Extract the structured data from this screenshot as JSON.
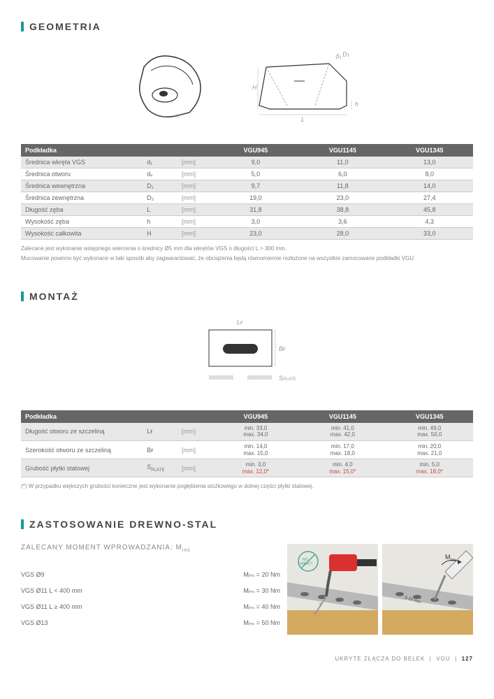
{
  "sections": {
    "geometria": "GEOMETRIA",
    "montaz": "MONTAŻ",
    "zastosowanie": "ZASTOSOWANIE DREWNO-STAL"
  },
  "subtitle_zalecany": "ZALECANY MOMENT WPROWADZANIA: M",
  "geom_table": {
    "header": [
      "Podkładka",
      "",
      "",
      "VGU945",
      "VGU1145",
      "VGU1345"
    ],
    "rows": [
      {
        "label": "Średnica wkręta VGS",
        "sym": "d₁",
        "unit": "[mm]",
        "v": [
          "9,0",
          "11,0",
          "13,0"
        ],
        "shade": true
      },
      {
        "label": "Średnica otworu",
        "sym": "dᵥ",
        "unit": "[mm]",
        "v": [
          "5,0",
          "6,0",
          "8,0"
        ],
        "shade": false
      },
      {
        "label": "Średnica wewnętrzna",
        "sym": "D₁",
        "unit": "[mm]",
        "v": [
          "9,7",
          "11,8",
          "14,0"
        ],
        "shade": true
      },
      {
        "label": "Średnica zewnętrzna",
        "sym": "D₂",
        "unit": "[mm]",
        "v": [
          "19,0",
          "23,0",
          "27,4"
        ],
        "shade": false
      },
      {
        "label": "Długość zęba",
        "sym": "L",
        "unit": "[mm]",
        "v": [
          "31,8",
          "38,8",
          "45,8"
        ],
        "shade": true
      },
      {
        "label": "Wysokość zęba",
        "sym": "h",
        "unit": "[mm]",
        "v": [
          "3,0",
          "3,6",
          "4,3"
        ],
        "shade": false
      },
      {
        "label": "Wysokość całkowita",
        "sym": "H",
        "unit": "[mm]",
        "v": [
          "23,0",
          "28,0",
          "33,0"
        ],
        "shade": true
      }
    ],
    "note1": "Zalecane jest wykonanie wstępnego wiercenia o średnicy Ø5 mm dla wkrętów VGS o długości L > 300 mm.",
    "note2": "Mocowanie powinno być wykonane w taki sposób aby zagwarantować, że obciążenia będą równomiernie rozłożone na wszystkie zamo­cowane podkładki VGU."
  },
  "montaz_table": {
    "header": [
      "Podkładka",
      "",
      "",
      "VGU945",
      "VGU1145",
      "VGU1345"
    ],
    "rows": [
      {
        "label": "Długość otworu ze szczeliną",
        "sym": "Lғ",
        "unit": "[mm]",
        "v": [
          [
            "min. 33,0",
            "max. 34,0"
          ],
          [
            "min. 41,0",
            "max. 42,0"
          ],
          [
            "min. 49,0",
            "max. 50,0"
          ]
        ],
        "shade": true
      },
      {
        "label": "Szerokość otworu ze szczeliną",
        "sym": "Bғ",
        "unit": "[mm]",
        "v": [
          [
            "min. 14,0",
            "max. 15,0"
          ],
          [
            "min. 17,0",
            "max. 18,0"
          ],
          [
            "min. 20,0",
            "max. 21,0"
          ]
        ],
        "shade": false
      },
      {
        "label": "Grubość płytki stalowej",
        "sym": "S",
        "sub": "PLATE",
        "unit": "[mm]",
        "v": [
          [
            "min. 3,0",
            "max. 12,0*"
          ],
          [
            "min. 4,0",
            "max. 15,0*"
          ],
          [
            "min. 5,0",
            "max. 18,0*"
          ]
        ],
        "shade": true,
        "redmax": true
      }
    ],
    "note": "(*) W przypadku większych grubości konieczne jest wykonanie pogłębienia stożkowego w dolnej części płytki stalowej."
  },
  "diagram_labels": {
    "H": "H",
    "L": "L",
    "h": "h",
    "LF": "Lғ",
    "BF": "Bғ",
    "SPLATE": "S",
    "SPLATE_sub": "PLATE"
  },
  "moment": [
    {
      "label": "VGS Ø9",
      "val": "Mᵢₙₛ = 20 Nm"
    },
    {
      "label": "VGS Ø11 L < 400 mm",
      "val": "Mᵢₙₛ = 30 Nm"
    },
    {
      "label": "VGS Ø11 L ≥ 400 mm",
      "val": "Mᵢₙₛ = 40 Nm"
    },
    {
      "label": "VGS Ø13",
      "val": "Mᵢₙₛ = 50 Nm"
    }
  ],
  "footer": {
    "text": "UKRYTE ZŁĄCZA DO BELEK",
    "product": "VGU",
    "page": "127"
  },
  "colors": {
    "teal": "#1a9999",
    "darkgrey": "#666",
    "lightgrey": "#e8e8e8",
    "border": "#ccc",
    "text": "#666",
    "note": "#888",
    "red": "#c44"
  }
}
